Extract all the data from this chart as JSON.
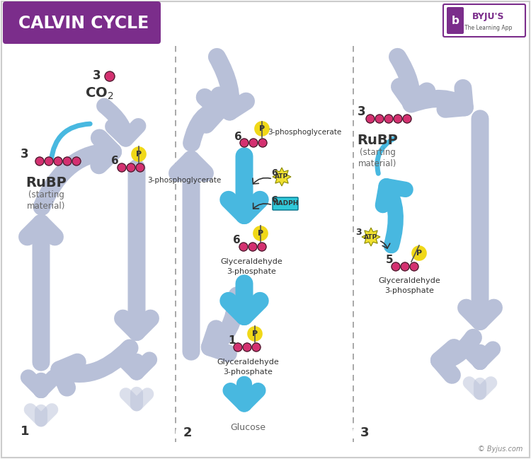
{
  "title": "CALVIN CYCLE",
  "title_bg": "#7B2D8B",
  "title_text_color": "#FFFFFF",
  "bg_color": "#FFFFFF",
  "border_color": "#CCCCCC",
  "dashed_line_color": "#888888",
  "gray_arrow_color": "#B8C0D8",
  "gray_arrow_dark": "#9098B0",
  "blue_arrow_color": "#48B8E0",
  "pink_dot_color": "#D43070",
  "phosphate_color": "#F0D818",
  "phosphate_border": "#888800",
  "atp_color": "#F0E030",
  "nadph_color": "#30C8D8",
  "text_color": "#333333",
  "copyright": "© Byjus.com",
  "byju_text": "BYJU'S",
  "byju_subtext": "The Learning App"
}
